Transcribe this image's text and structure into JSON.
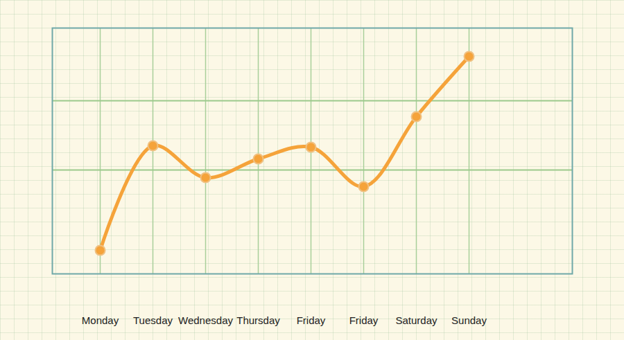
{
  "chart_data": {
    "type": "line",
    "categories": [
      "Monday",
      "Tuesday",
      "Wednesday",
      "Thursday",
      "Friday",
      "Friday",
      "Saturday",
      "Sunday"
    ],
    "values": [
      3.4,
      18.5,
      13.9,
      16.6,
      18.3,
      12.6,
      22.7,
      31.4
    ],
    "color": "#f5a33a",
    "marker": "circle",
    "ylim": [
      0,
      35.5
    ],
    "yticks": [
      15,
      25
    ],
    "grid": true,
    "tick_labels": "x"
  }
}
